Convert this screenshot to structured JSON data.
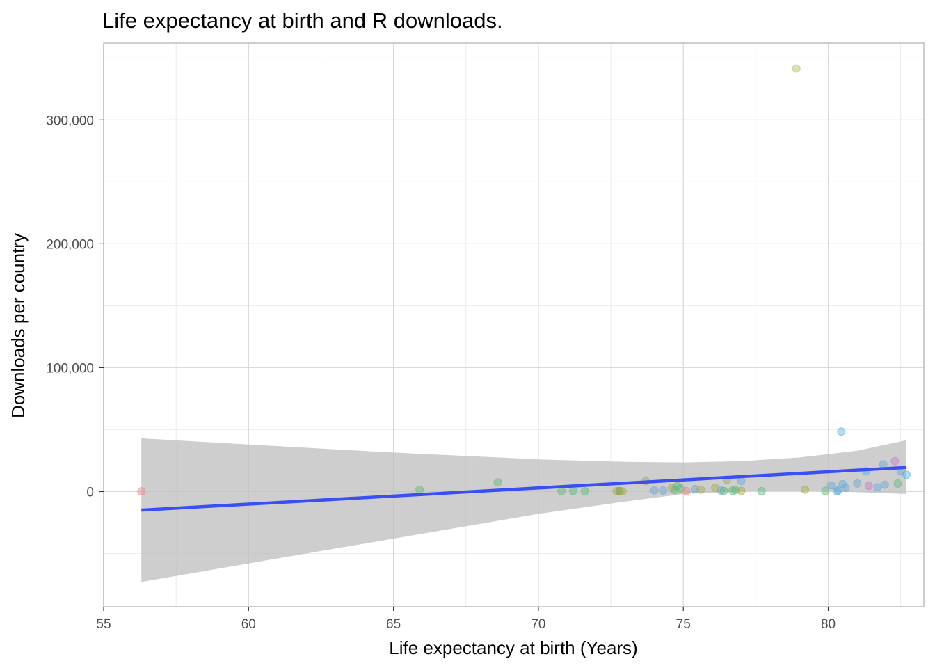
{
  "chart_data": {
    "type": "scatter",
    "title": "Life expectancy at birth and R downloads.",
    "xlabel": "Life expectancy at birth (Years)",
    "ylabel": "Downloads per country",
    "xlim": [
      55,
      83.3
    ],
    "ylim": [
      -93000,
      362000
    ],
    "x_ticks": [
      55,
      60,
      65,
      70,
      75,
      80
    ],
    "x_tick_labels": [
      "55",
      "60",
      "65",
      "70",
      "75",
      "80"
    ],
    "y_ticks": [
      0,
      100000,
      200000,
      300000
    ],
    "y_tick_labels": [
      "0",
      "100,000",
      "200,000",
      "300,000"
    ],
    "grid": true,
    "colors": {
      "smooth_line": "#3a4ef5",
      "ribbon": "#bdbdbd",
      "panel_border": "#b3b3b3",
      "major_grid": "#d9d9d9",
      "minor_grid": "#ececec"
    },
    "points": [
      {
        "x": 56.3,
        "y": 200,
        "color": "#f08080"
      },
      {
        "x": 65.9,
        "y": 1500,
        "color": "#5fb87a"
      },
      {
        "x": 68.6,
        "y": 7500,
        "color": "#5fb87a"
      },
      {
        "x": 70.8,
        "y": 300,
        "color": "#5fb87a"
      },
      {
        "x": 71.2,
        "y": 500,
        "color": "#5fb87a"
      },
      {
        "x": 71.6,
        "y": 200,
        "color": "#5fb87a"
      },
      {
        "x": 72.7,
        "y": 400,
        "color": "#a8a84f"
      },
      {
        "x": 72.8,
        "y": 300,
        "color": "#5f9c3c"
      },
      {
        "x": 72.9,
        "y": 200,
        "color": "#a8a84f"
      },
      {
        "x": 73.7,
        "y": 8500,
        "color": "#a8a84f"
      },
      {
        "x": 74.0,
        "y": 1000,
        "color": "#6aa7d8"
      },
      {
        "x": 74.3,
        "y": 800,
        "color": "#6aa7d8"
      },
      {
        "x": 74.6,
        "y": 3000,
        "color": "#a8a84f"
      },
      {
        "x": 74.7,
        "y": 1200,
        "color": "#5fb87a"
      },
      {
        "x": 74.8,
        "y": 4500,
        "color": "#5fb87a"
      },
      {
        "x": 74.9,
        "y": 2500,
        "color": "#5fb87a"
      },
      {
        "x": 75.1,
        "y": 400,
        "color": "#f08080"
      },
      {
        "x": 75.4,
        "y": 2000,
        "color": "#6aa7d8"
      },
      {
        "x": 75.6,
        "y": 1500,
        "color": "#a8a84f"
      },
      {
        "x": 76.1,
        "y": 3000,
        "color": "#a8a84f"
      },
      {
        "x": 76.3,
        "y": 800,
        "color": "#6aa7d8"
      },
      {
        "x": 76.4,
        "y": 400,
        "color": "#5fb87a"
      },
      {
        "x": 76.5,
        "y": 9500,
        "color": "#a8a84f"
      },
      {
        "x": 76.7,
        "y": 700,
        "color": "#5fb87a"
      },
      {
        "x": 76.8,
        "y": 1200,
        "color": "#5fb87a"
      },
      {
        "x": 77.0,
        "y": 500,
        "color": "#a8a84f"
      },
      {
        "x": 77.0,
        "y": 8500,
        "color": "#6aa7d8"
      },
      {
        "x": 77.7,
        "y": 300,
        "color": "#5fb87a"
      },
      {
        "x": 78.9,
        "y": 341500,
        "color": "#b0bb55"
      },
      {
        "x": 79.2,
        "y": 1500,
        "color": "#a8a84f"
      },
      {
        "x": 79.9,
        "y": 500,
        "color": "#5fb87a"
      },
      {
        "x": 80.1,
        "y": 5000,
        "color": "#6aa7d8"
      },
      {
        "x": 80.3,
        "y": 300,
        "color": "#6aa7d8"
      },
      {
        "x": 80.35,
        "y": 1000,
        "color": "#4eb3e8"
      },
      {
        "x": 80.45,
        "y": 48500,
        "color": "#4eb3e8"
      },
      {
        "x": 80.5,
        "y": 6000,
        "color": "#6aa7d8"
      },
      {
        "x": 80.6,
        "y": 3000,
        "color": "#6aa7d8"
      },
      {
        "x": 81.0,
        "y": 6500,
        "color": "#6aa7d8"
      },
      {
        "x": 81.3,
        "y": 16500,
        "color": "#4eb3e8"
      },
      {
        "x": 81.4,
        "y": 4500,
        "color": "#c77dc7"
      },
      {
        "x": 81.7,
        "y": 3500,
        "color": "#6aa7d8"
      },
      {
        "x": 81.9,
        "y": 22000,
        "color": "#6aa7d8"
      },
      {
        "x": 81.95,
        "y": 5500,
        "color": "#6aa7d8"
      },
      {
        "x": 82.3,
        "y": 24500,
        "color": "#c77dc7"
      },
      {
        "x": 82.4,
        "y": 6500,
        "color": "#5fb87a"
      },
      {
        "x": 82.5,
        "y": 16500,
        "color": "#6aa7d8"
      },
      {
        "x": 82.7,
        "y": 13500,
        "color": "#4eb3e8"
      }
    ],
    "smooth": {
      "x": [
        56.3,
        82.7
      ],
      "y": [
        -15000,
        19500
      ]
    },
    "ribbon": [
      {
        "x": 56.3,
        "lo": -73000,
        "hi": 43000
      },
      {
        "x": 60,
        "lo": -58000,
        "hi": 38000
      },
      {
        "x": 65,
        "lo": -38000,
        "hi": 31500
      },
      {
        "x": 70,
        "lo": -18000,
        "hi": 26000
      },
      {
        "x": 73,
        "lo": -8000,
        "hi": 24000
      },
      {
        "x": 75,
        "lo": -2000,
        "hi": 23500
      },
      {
        "x": 77,
        "lo": 200,
        "hi": 24500
      },
      {
        "x": 79,
        "lo": 500,
        "hi": 27500
      },
      {
        "x": 81,
        "lo": -500,
        "hi": 33000
      },
      {
        "x": 82.7,
        "lo": -2000,
        "hi": 41500
      }
    ]
  }
}
